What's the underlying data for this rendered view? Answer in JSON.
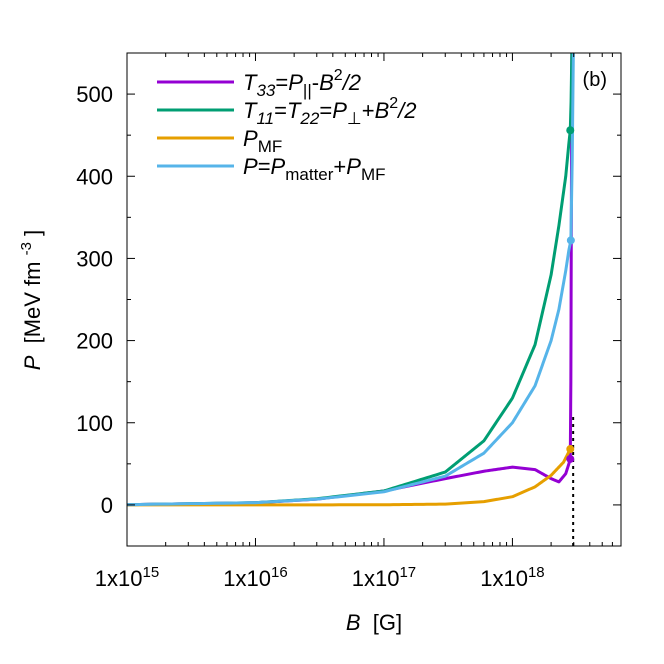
{
  "chart_data": {
    "type": "line",
    "panel_label": "(b)",
    "xlabel": {
      "symbol": "B",
      "unit": "[G]"
    },
    "ylabel": {
      "symbol": "P",
      "unit": "[MeV fm",
      "unit_sup": "-3",
      "unit_end": "]"
    },
    "x_scale": "log",
    "xlim": [
      1000000000000000.0,
      7e+18
    ],
    "ylim": [
      -50,
      550
    ],
    "x_ticks": [
      {
        "value": 1000000000000000.0,
        "label": "1x10",
        "exp": "15"
      },
      {
        "value": 1e+16,
        "label": "1x10",
        "exp": "16"
      },
      {
        "value": 1e+17,
        "label": "1x10",
        "exp": "17"
      },
      {
        "value": 1e+18,
        "label": "1x10",
        "exp": "18"
      }
    ],
    "y_ticks": [
      0,
      100,
      200,
      300,
      400,
      500
    ],
    "grid": false,
    "legend_position": "top-left",
    "series": [
      {
        "name": "T33",
        "legend_parts": [
          {
            "t": "T",
            "style": "italic"
          },
          {
            "t": "33",
            "style": "italic-sub"
          },
          {
            "t": "=",
            "style": "normal"
          },
          {
            "t": "P",
            "style": "italic"
          },
          {
            "t": "||",
            "style": "sub"
          },
          {
            "t": "-",
            "style": "normal"
          },
          {
            "t": "B",
            "style": "italic"
          },
          {
            "t": "2",
            "style": "sup"
          },
          {
            "t": "/2",
            "style": "italic"
          }
        ],
        "color": "#9400d3",
        "x": [
          1000000000000000.0,
          1e+16,
          3e+16,
          1e+17,
          3e+17,
          6e+17,
          1e+18,
          1.5e+18,
          2e+18,
          2.3e+18,
          2.6e+18,
          2.75e+18,
          2.82e+18,
          2.85e+18,
          2.9e+18
        ],
        "y": [
          0.3,
          2.6,
          7,
          17,
          32,
          41,
          46,
          43,
          32,
          28,
          38,
          50,
          56,
          150,
          550
        ],
        "end_marker": {
          "x": 2.82e+18,
          "y": 56
        }
      },
      {
        "name": "T11",
        "legend_parts": [
          {
            "t": "T",
            "style": "italic"
          },
          {
            "t": "11",
            "style": "italic-sub"
          },
          {
            "t": "=",
            "style": "normal"
          },
          {
            "t": "T",
            "style": "italic"
          },
          {
            "t": "22",
            "style": "italic-sub"
          },
          {
            "t": "=",
            "style": "normal"
          },
          {
            "t": "P",
            "style": "italic"
          },
          {
            "t": "⊥",
            "style": "sub"
          },
          {
            "t": "+",
            "style": "normal"
          },
          {
            "t": "B",
            "style": "italic"
          },
          {
            "t": "2",
            "style": "sup"
          },
          {
            "t": "/2",
            "style": "italic"
          }
        ],
        "color": "#009e73",
        "x": [
          1000000000000000.0,
          1e+16,
          3e+16,
          1e+17,
          3e+17,
          6e+17,
          1e+18,
          1.5e+18,
          2e+18,
          2.3e+18,
          2.6e+18,
          2.75e+18,
          2.82e+18,
          2.86e+18,
          2.9e+18
        ],
        "y": [
          0.3,
          2.7,
          7.5,
          17,
          40,
          78,
          130,
          195,
          280,
          340,
          400,
          440,
          456,
          490,
          550
        ],
        "end_marker": {
          "x": 2.82e+18,
          "y": 456
        }
      },
      {
        "name": "PMF",
        "legend_parts": [
          {
            "t": "P",
            "style": "italic"
          },
          {
            "t": "MF",
            "style": "sub"
          }
        ],
        "color": "#e69f00",
        "x": [
          1000000000000000.0,
          1e+16,
          1e+17,
          3e+17,
          6e+17,
          1e+18,
          1.5e+18,
          2e+18,
          2.5e+18,
          2.82e+18
        ],
        "y": [
          0,
          0,
          0.2,
          1,
          4,
          10,
          22,
          36,
          52,
          68
        ],
        "end_marker": {
          "x": 2.82e+18,
          "y": 68
        }
      },
      {
        "name": "P",
        "legend_parts": [
          {
            "t": "P",
            "style": "italic"
          },
          {
            "t": "=",
            "style": "normal"
          },
          {
            "t": "P",
            "style": "italic"
          },
          {
            "t": "matter",
            "style": "sub"
          },
          {
            "t": "+",
            "style": "normal"
          },
          {
            "t": "P",
            "style": "italic"
          },
          {
            "t": "MF",
            "style": "sub"
          }
        ],
        "color": "#56b4e9",
        "x": [
          1000000000000000.0,
          1e+16,
          3e+16,
          1e+17,
          3e+17,
          6e+17,
          1e+18,
          1.5e+18,
          2e+18,
          2.3e+18,
          2.6e+18,
          2.75e+18,
          2.85e+18,
          2.92e+18,
          2.98e+18
        ],
        "y": [
          0.3,
          2.7,
          7,
          16,
          35,
          63,
          100,
          145,
          200,
          238,
          285,
          310,
          322,
          420,
          550
        ],
        "end_marker": {
          "x": 2.85e+18,
          "y": 322
        }
      }
    ],
    "vertical_line": {
      "x": 2.97e+18,
      "y_from": -50,
      "y_to": 110,
      "style": "dotted",
      "color": "#000000"
    }
  }
}
